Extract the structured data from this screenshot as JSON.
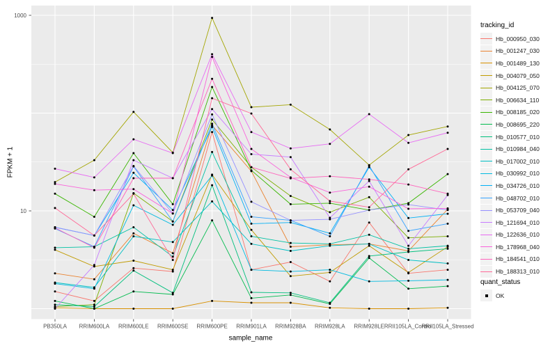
{
  "chart_data": {
    "type": "line",
    "title": "",
    "xlabel": "sample_name",
    "ylabel": "FPKM + 1",
    "x_scale": "discrete",
    "y_scale": "log10",
    "ylim": [
      0.79,
      1260
    ],
    "grid": true,
    "panel_bg": "#EBEBEB",
    "grid_color": "#FFFFFF",
    "point_color": "#000000",
    "categories": [
      "PB350LA",
      "RRIM600LA",
      "RRIM600LE",
      "RRIM600SE",
      "RRIM600PE",
      "RRIM901LA",
      "RRIM928BA",
      "RRIM928LA",
      "RRIM928LE",
      "RRII105LA_Control",
      "RRII105LA_Stressed"
    ],
    "y_ticks": [
      {
        "value": 10,
        "label": "10"
      },
      {
        "value": 1000,
        "label": "1000"
      }
    ],
    "y_major_gridlines": [
      1,
      10,
      100,
      1000
    ],
    "y_minor_gridlines": [
      3.162,
      31.62,
      316.2
    ],
    "legend": {
      "title": "tracking_id",
      "position": "right"
    },
    "legend2": {
      "title": "quant_status",
      "items": [
        {
          "label": "OK",
          "marker": "black-square"
        }
      ]
    },
    "series": [
      {
        "id": "Hb_000950_030",
        "color": "#F8766D",
        "values": [
          1.5,
          1.2,
          2.6,
          2.4,
          64,
          2.5,
          3.0,
          1.9,
          7.6,
          2.3,
          2.5
        ]
      },
      {
        "id": "Hb_001247_030",
        "color": "#EA8331",
        "values": [
          2.3,
          2.0,
          5.9,
          3.7,
          75,
          25.5,
          4.3,
          4.5,
          4.6,
          3.9,
          10.4
        ]
      },
      {
        "id": "Hb_001489_130",
        "color": "#D89000",
        "values": [
          1.02,
          1.0,
          1.0,
          1.0,
          1.2,
          1.15,
          1.15,
          1.02,
          1.0,
          1.0,
          1.02
        ]
      },
      {
        "id": "Hb_004079_050",
        "color": "#C09B00",
        "values": [
          4.0,
          2.7,
          3.1,
          2.5,
          23.5,
          6.4,
          2.15,
          2.35,
          4.4,
          2.34,
          4.3
        ]
      },
      {
        "id": "Hb_004125_070",
        "color": "#A3A500",
        "values": [
          19.7,
          33,
          103,
          39.5,
          940,
          115,
          122,
          68,
          29.4,
          59.7,
          73
        ]
      },
      {
        "id": "Hb_006634_110",
        "color": "#7CAE00",
        "values": [
          1.05,
          1.1,
          15.2,
          7.8,
          86,
          28,
          14.2,
          9.7,
          13.8,
          5.3,
          5.5
        ]
      },
      {
        "id": "Hb_008185_020",
        "color": "#39B600",
        "values": [
          15,
          8.7,
          39,
          11.7,
          185,
          26,
          11.7,
          12,
          10.2,
          12,
          23.8
        ]
      },
      {
        "id": "Hb_008695_220",
        "color": "#00BB4E",
        "values": [
          1.2,
          1.0,
          1.5,
          1.4,
          8.0,
          1.28,
          1.38,
          1.12,
          3.3,
          1.6,
          1.7
        ]
      },
      {
        "id": "Hb_010577_010",
        "color": "#00BF7D",
        "values": [
          1.1,
          1.05,
          2.45,
          1.45,
          18.3,
          1.47,
          1.45,
          1.15,
          3.45,
          3.8,
          4.1
        ]
      },
      {
        "id": "Hb_010984_040",
        "color": "#00C1A3",
        "values": [
          4.2,
          4.3,
          6.8,
          3.4,
          40,
          5.5,
          4.7,
          4.6,
          5.7,
          4.1,
          4.4
        ]
      },
      {
        "id": "Hb_017002_010",
        "color": "#00BFC4",
        "values": [
          1.85,
          1.65,
          5.5,
          4.8,
          12.5,
          4.6,
          3.9,
          4.4,
          4.6,
          3.15,
          2.9
        ]
      },
      {
        "id": "Hb_030992_010",
        "color": "#00BAE0",
        "values": [
          1.8,
          1.6,
          11.4,
          7.2,
          23,
          2.5,
          2.4,
          2.5,
          1.9,
          1.93,
          1.97
        ]
      },
      {
        "id": "Hb_034726_010",
        "color": "#00B0F6",
        "values": [
          6.8,
          5.6,
          24.5,
          10.2,
          72,
          7.4,
          7.6,
          5.9,
          28,
          8.45,
          9.35
        ]
      },
      {
        "id": "Hb_048702_010",
        "color": "#35A2FF",
        "values": [
          6.6,
          4.3,
          28.5,
          7.8,
          78,
          8.7,
          8.0,
          5.5,
          29,
          6.25,
          7.4
        ]
      },
      {
        "id": "Hb_053709_040",
        "color": "#9590FF",
        "values": [
          6.8,
          5.6,
          28.8,
          9.4,
          97,
          12.4,
          8.0,
          8.2,
          10.2,
          11.6,
          10.2
        ]
      },
      {
        "id": "Hb_121694_010",
        "color": "#C77CFF",
        "values": [
          1.0,
          2.8,
          33,
          21.6,
          110,
          38,
          35.5,
          8.5,
          20.2,
          4.4,
          14.5
        ]
      },
      {
        "id": "Hb_122636_010",
        "color": "#E76BF3",
        "values": [
          27,
          22,
          54,
          39,
          400,
          64,
          43.5,
          48.5,
          97.5,
          49.6,
          63
        ]
      },
      {
        "id": "Hb_178968_040",
        "color": "#FA62DB",
        "values": [
          18.9,
          16.3,
          16.7,
          9.4,
          376,
          43,
          22,
          15.4,
          17.7,
          10.5,
          10.6
        ]
      },
      {
        "id": "Hb_184541_010",
        "color": "#FF62BC",
        "values": [
          6.7,
          4.2,
          21.6,
          21.6,
          224,
          28,
          21.5,
          22.6,
          21,
          18.6,
          15
        ]
      },
      {
        "id": "Hb_188313_010",
        "color": "#FF6A98",
        "values": [
          10.7,
          5.6,
          15,
          3.15,
          142,
          99,
          26.6,
          12.6,
          10.9,
          26.6,
          43
        ]
      }
    ]
  }
}
